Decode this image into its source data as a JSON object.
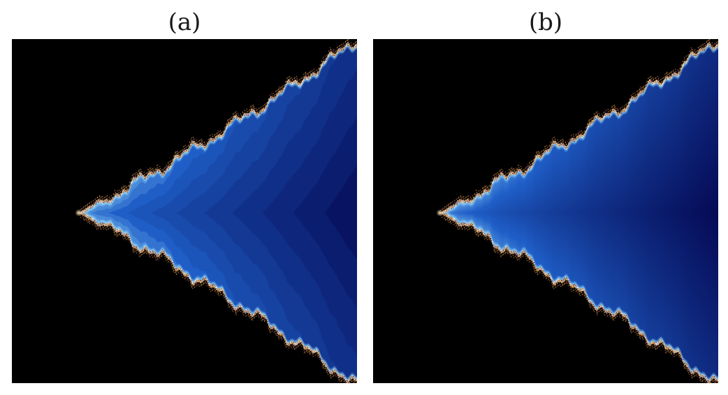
{
  "panels": [
    {
      "label": "(a)",
      "shading": "banded"
    },
    {
      "label": "(b)",
      "shading": "smooth"
    }
  ],
  "colors": {
    "background": "#000000",
    "deep_blue": "#050a55",
    "mid_blue": "#1f5fc8",
    "light_blue": "#8fd0f5",
    "edge_orange": "#e8a040",
    "edge_white": "#ffffff"
  }
}
